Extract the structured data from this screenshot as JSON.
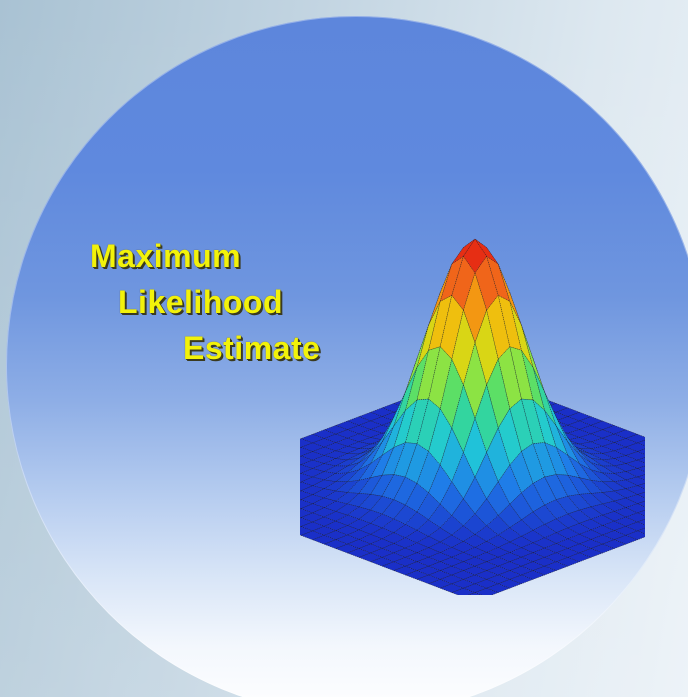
{
  "title": {
    "line1": "Maximum",
    "line2": "Likelihood",
    "line3": "Estimate"
  },
  "graphic": {
    "icon": "gaussian-surface-plot-icon",
    "colormap": [
      "#1a2fc8",
      "#1f7be8",
      "#20c9d8",
      "#3fdc7a",
      "#c8e81a",
      "#f5b80c",
      "#f0641a",
      "#e01010"
    ]
  },
  "colors": {
    "title_text": "#f2f20a",
    "disc_top": "#5d86dc",
    "disc_bottom": "#ffffff"
  }
}
